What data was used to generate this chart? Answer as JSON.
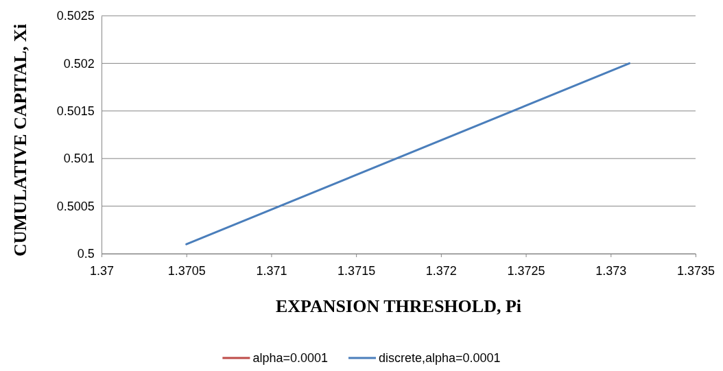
{
  "chart_data": {
    "type": "line",
    "xlabel": "EXPANSION THRESHOLD, Pi",
    "ylabel": "CUMULATIVE CAPITAL, Xi",
    "x": [
      1.3705,
      1.37311
    ],
    "series": [
      {
        "name": "alpha=0.0001",
        "color": "#be4b48",
        "values": [
          null,
          null
        ]
      },
      {
        "name": "discrete,alpha=0.0001",
        "color": "#4a7ebb",
        "values": [
          0.5001,
          0.502
        ]
      }
    ],
    "xlim": [
      1.37,
      1.3735
    ],
    "xticks": [
      {
        "value": 1.37,
        "label": "1.37"
      },
      {
        "value": 1.3705,
        "label": "1.3705"
      },
      {
        "value": 1.371,
        "label": "1.371"
      },
      {
        "value": 1.3715,
        "label": "1.3715"
      },
      {
        "value": 1.372,
        "label": "1.372"
      },
      {
        "value": 1.3725,
        "label": "1.3725"
      },
      {
        "value": 1.373,
        "label": "1.373"
      },
      {
        "value": 1.3735,
        "label": "1.3735"
      }
    ],
    "ylim": [
      0.5,
      0.5025
    ],
    "yticks": [
      {
        "value": 0.5,
        "label": "0.5"
      },
      {
        "value": 0.5005,
        "label": "0.5005"
      },
      {
        "value": 0.501,
        "label": "0.501"
      },
      {
        "value": 0.5015,
        "label": "0.5015"
      },
      {
        "value": 0.502,
        "label": "0.502"
      },
      {
        "value": 0.5025,
        "label": "0.5025"
      }
    ],
    "grid": "y",
    "legend": "bottom",
    "marker": "none",
    "line_style": "solid"
  }
}
